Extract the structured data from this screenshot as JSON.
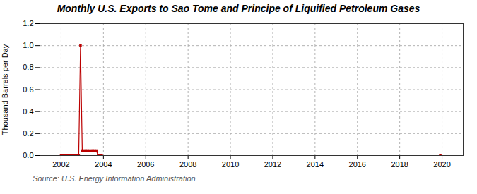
{
  "chart_data": {
    "type": "line",
    "title": "Monthly U.S. Exports to Sao Tome and Principe of Liquified Petroleum Gases",
    "ylabel": "Thousand Barrels per Day",
    "source": "Source: U.S. Energy Information Administration",
    "x": [
      2002.0,
      2002.083,
      2002.167,
      2002.25,
      2002.333,
      2002.417,
      2002.5,
      2002.583,
      2002.667,
      2002.75,
      2002.833,
      2002.917,
      2003.0,
      2003.083,
      2003.167,
      2003.25,
      2003.333,
      2003.417,
      2003.5,
      2003.583,
      2003.667,
      2003.75,
      2003.833,
      2003.917,
      2019.917
    ],
    "values": [
      0.0,
      0.0,
      0.0,
      0.0,
      0.0,
      0.0,
      0.0,
      0.0,
      0.0,
      0.0,
      0.0,
      1.0,
      0.045,
      0.045,
      0.045,
      0.045,
      0.045,
      0.045,
      0.045,
      0.045,
      0.045,
      0.0,
      0.0,
      0.0,
      0.0
    ],
    "color": "#bb0000",
    "marker": "square",
    "xlim": [
      2001.0,
      2021.0
    ],
    "xticks": [
      2002,
      2004,
      2006,
      2008,
      2010,
      2012,
      2014,
      2016,
      2018,
      2020
    ],
    "ylim": [
      0.0,
      1.2
    ],
    "yticks": [
      {
        "value": 0.0,
        "label": "0.0"
      },
      0.2,
      0.4,
      0.6,
      0.8,
      {
        "value": 1.0,
        "label": "1.0"
      },
      1.2
    ],
    "grid": true
  }
}
